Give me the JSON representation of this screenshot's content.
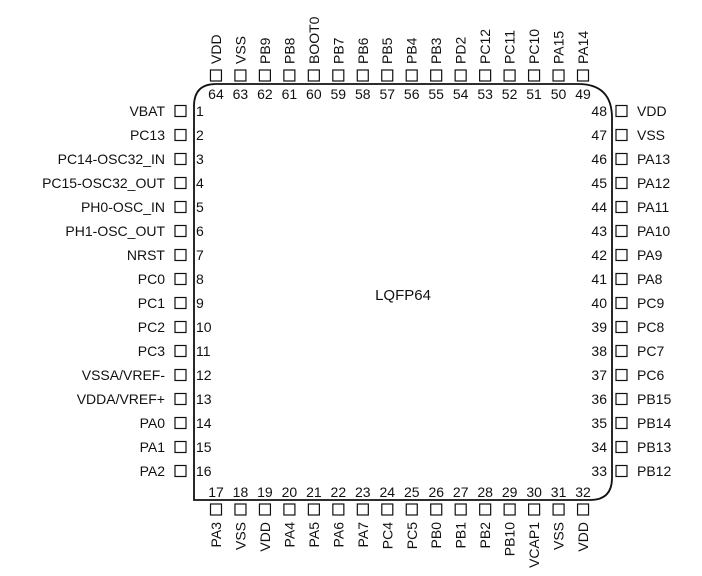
{
  "package": {
    "name": "LQFP64"
  },
  "pins": {
    "left": [
      {
        "num": "1",
        "name": "VBAT"
      },
      {
        "num": "2",
        "name": "PC13"
      },
      {
        "num": "3",
        "name": "PC14-OSC32_IN"
      },
      {
        "num": "4",
        "name": "PC15-OSC32_OUT"
      },
      {
        "num": "5",
        "name": "PH0-OSC_IN"
      },
      {
        "num": "6",
        "name": "PH1-OSC_OUT"
      },
      {
        "num": "7",
        "name": "NRST"
      },
      {
        "num": "8",
        "name": "PC0"
      },
      {
        "num": "9",
        "name": "PC1"
      },
      {
        "num": "10",
        "name": "PC2"
      },
      {
        "num": "11",
        "name": "PC3"
      },
      {
        "num": "12",
        "name": "VSSA/VREF-"
      },
      {
        "num": "13",
        "name": "VDDA/VREF+"
      },
      {
        "num": "14",
        "name": "PA0"
      },
      {
        "num": "15",
        "name": "PA1"
      },
      {
        "num": "16",
        "name": "PA2"
      }
    ],
    "bottom": [
      {
        "num": "17",
        "name": "PA3"
      },
      {
        "num": "18",
        "name": "VSS"
      },
      {
        "num": "19",
        "name": "VDD"
      },
      {
        "num": "20",
        "name": "PA4"
      },
      {
        "num": "21",
        "name": "PA5"
      },
      {
        "num": "22",
        "name": "PA6"
      },
      {
        "num": "23",
        "name": "PA7"
      },
      {
        "num": "24",
        "name": "PC4"
      },
      {
        "num": "25",
        "name": "PC5"
      },
      {
        "num": "26",
        "name": "PB0"
      },
      {
        "num": "27",
        "name": "PB1"
      },
      {
        "num": "28",
        "name": "PB2"
      },
      {
        "num": "29",
        "name": "PB10"
      },
      {
        "num": "30",
        "name": "VCAP1"
      },
      {
        "num": "31",
        "name": "VSS"
      },
      {
        "num": "32",
        "name": "VDD"
      }
    ],
    "right": [
      {
        "num": "33",
        "name": "PB12"
      },
      {
        "num": "34",
        "name": "PB13"
      },
      {
        "num": "35",
        "name": "PB14"
      },
      {
        "num": "36",
        "name": "PB15"
      },
      {
        "num": "37",
        "name": "PC6"
      },
      {
        "num": "38",
        "name": "PC7"
      },
      {
        "num": "39",
        "name": "PC8"
      },
      {
        "num": "40",
        "name": "PC9"
      },
      {
        "num": "41",
        "name": "PA8"
      },
      {
        "num": "42",
        "name": "PA9"
      },
      {
        "num": "43",
        "name": "PA10"
      },
      {
        "num": "44",
        "name": "PA11"
      },
      {
        "num": "45",
        "name": "PA12"
      },
      {
        "num": "46",
        "name": "PA13"
      },
      {
        "num": "47",
        "name": "VSS"
      },
      {
        "num": "48",
        "name": "VDD"
      }
    ],
    "top": [
      {
        "num": "49",
        "name": "PA14"
      },
      {
        "num": "50",
        "name": "PA15"
      },
      {
        "num": "51",
        "name": "PC10"
      },
      {
        "num": "52",
        "name": "PC11"
      },
      {
        "num": "53",
        "name": "PC12"
      },
      {
        "num": "54",
        "name": "PD2"
      },
      {
        "num": "55",
        "name": "PB3"
      },
      {
        "num": "56",
        "name": "PB4"
      },
      {
        "num": "57",
        "name": "PB5"
      },
      {
        "num": "58",
        "name": "PB6"
      },
      {
        "num": "59",
        "name": "PB7"
      },
      {
        "num": "60",
        "name": "BOOT0"
      },
      {
        "num": "61",
        "name": "PB8"
      },
      {
        "num": "62",
        "name": "PB9"
      },
      {
        "num": "63",
        "name": "VSS"
      },
      {
        "num": "64",
        "name": "VDD"
      }
    ]
  }
}
